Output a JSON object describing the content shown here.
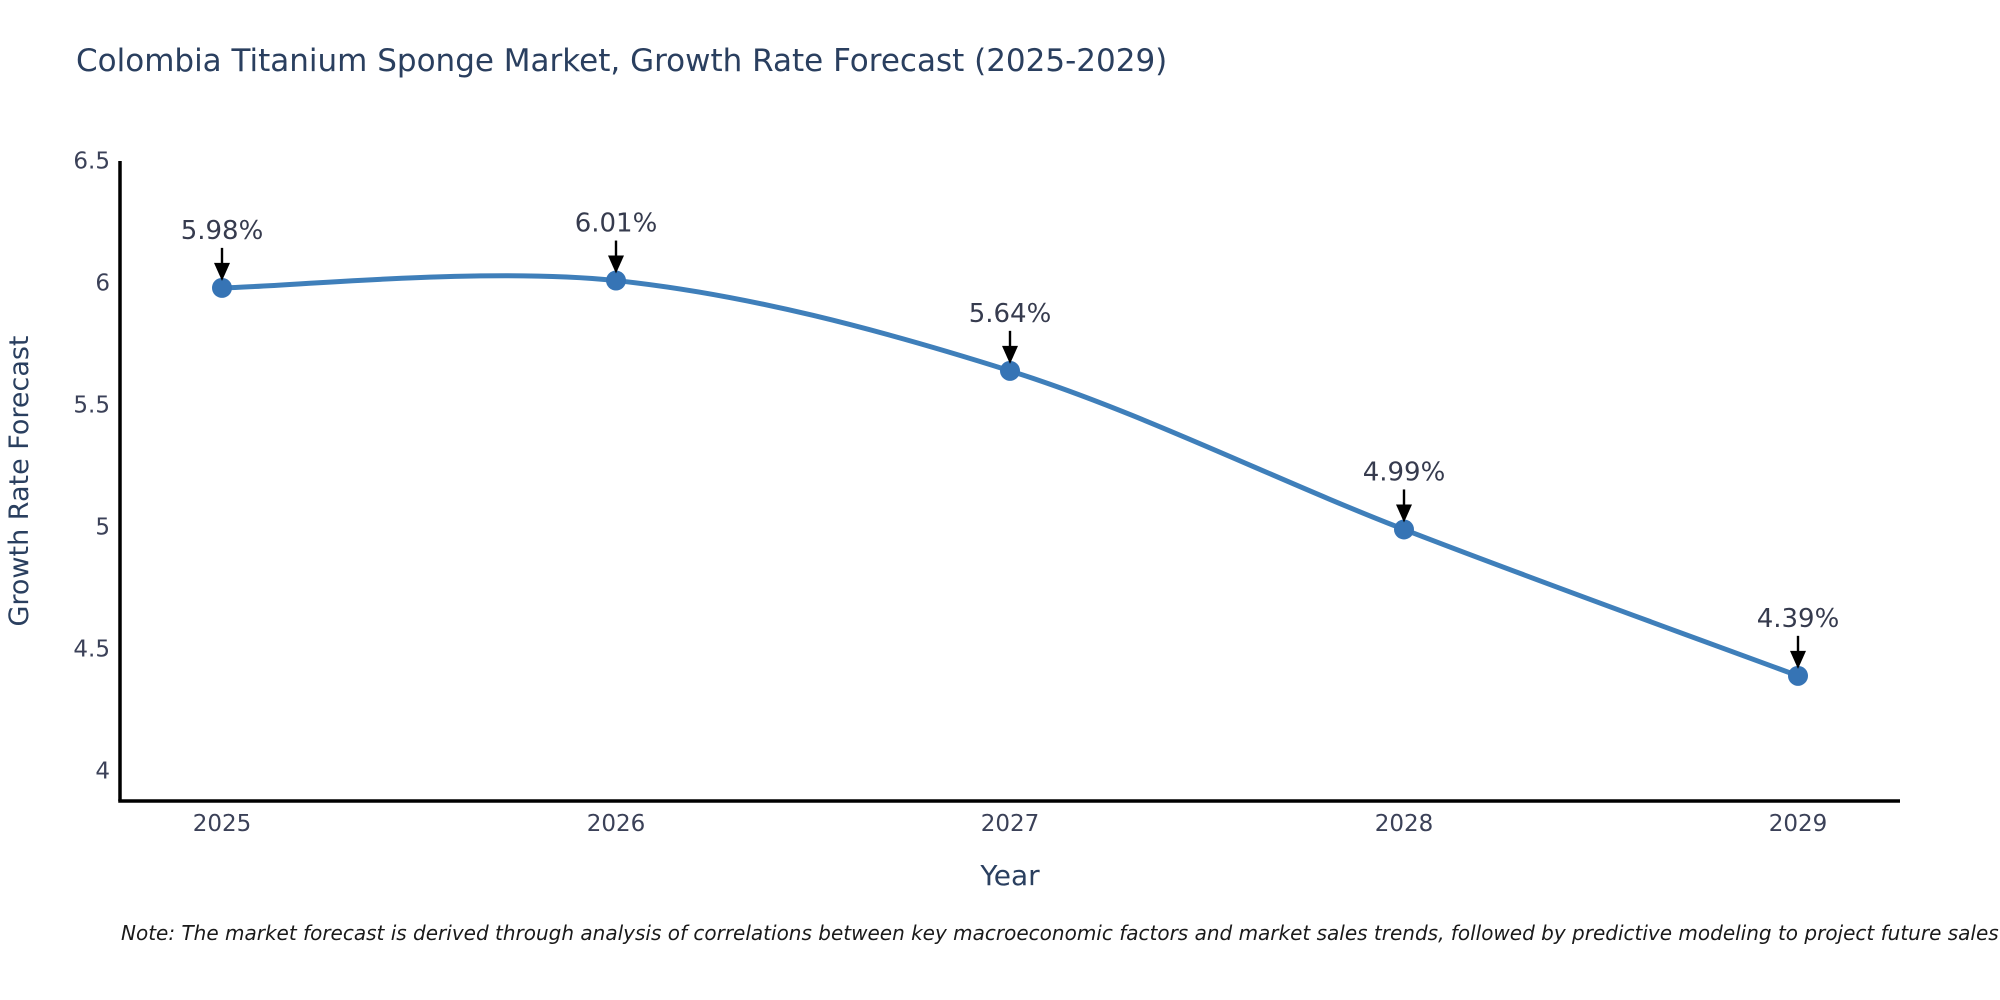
{
  "figure": {
    "title": "Colombia Titanium Sponge Market, Growth Rate Forecast (2025-2029)",
    "note": "Note: The market forecast is derived through analysis of correlations between key macroeconomic factors and market sales trends, followed by predictive modeling to project future sales"
  },
  "chart_data": {
    "type": "line",
    "title": "Colombia Titanium Sponge Market, Growth Rate Forecast (2025-2029)",
    "x": [
      2025,
      2026,
      2027,
      2028,
      2029
    ],
    "x_labels": [
      "2025",
      "2026",
      "2027",
      "2028",
      "2029"
    ],
    "series": [
      {
        "name": "Growth Rate Forecast",
        "values": [
          5.98,
          6.01,
          5.64,
          4.99,
          4.39
        ],
        "point_labels": [
          "5.98%",
          "6.01%",
          "5.64%",
          "4.99%",
          "4.39%"
        ]
      }
    ],
    "xlabel": "Year",
    "ylabel": "Growth Rate Forecast",
    "yticks": [
      6.5,
      6,
      5.5,
      5,
      4.5,
      4
    ],
    "ytick_labels": [
      "6.5",
      "6",
      "5.5",
      "5",
      "4.5",
      "4"
    ],
    "ylim": [
      3.88,
      6.5
    ],
    "line_shape": "spline",
    "grid": false,
    "legend_position": "none",
    "annotations": [
      "5.98%",
      "6.01%",
      "5.64%",
      "4.99%",
      "4.39%"
    ],
    "colors": {
      "line": "#3f7fba",
      "marker": "#3674b5",
      "arrow": "#000000",
      "axis": "#000000",
      "title_text": "#2a3f5f",
      "axis_title_text": "#2a3f5f",
      "tick_text": "#3b4158",
      "annotation_text": "#363b4e",
      "note_text": "#1a1a1a",
      "background": "#ffffff"
    }
  }
}
